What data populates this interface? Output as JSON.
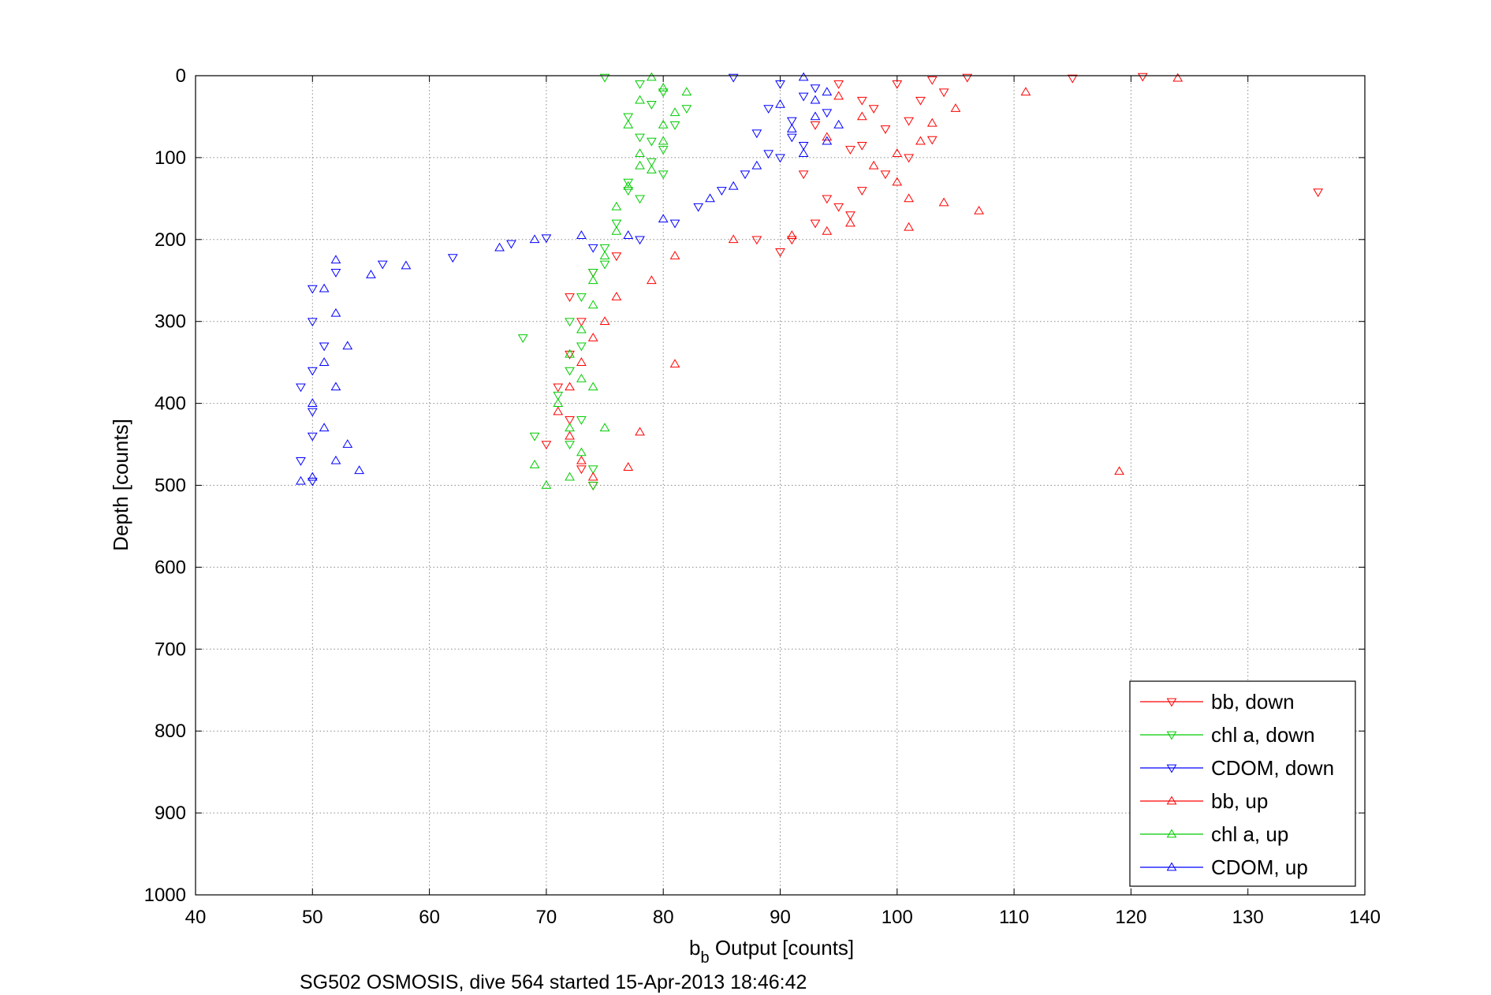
{
  "chart_data": {
    "type": "scatter",
    "xlabel_main": "b",
    "xlabel_sub": "b",
    "xlabel_rest": " Output [counts]",
    "ylabel": "Depth [counts]",
    "caption": "SG502 OSMOSIS, dive 564 started 15-Apr-2013 18:46:42",
    "xlim": [
      40,
      140
    ],
    "ylim": [
      0,
      1000
    ],
    "y_reversed": true,
    "grid": true,
    "legend_position": "bottom-right",
    "x_ticks": [
      "40",
      "50",
      "60",
      "70",
      "80",
      "90",
      "100",
      "110",
      "120",
      "130",
      "140"
    ],
    "y_ticks": [
      "0",
      "100",
      "200",
      "300",
      "400",
      "500",
      "600",
      "700",
      "800",
      "900",
      "1000"
    ],
    "series": [
      {
        "name": "bb, down",
        "color": "#ff0000",
        "marker": "triangle-down",
        "points": [
          [
            121,
            1
          ],
          [
            115,
            3
          ],
          [
            106,
            2
          ],
          [
            103,
            5
          ],
          [
            100,
            10
          ],
          [
            104,
            20
          ],
          [
            102,
            30
          ],
          [
            98,
            40
          ],
          [
            101,
            55
          ],
          [
            99,
            65
          ],
          [
            103,
            78
          ],
          [
            97,
            85
          ],
          [
            101,
            100
          ],
          [
            99,
            120
          ],
          [
            97,
            140
          ],
          [
            95,
            160
          ],
          [
            93,
            180
          ],
          [
            91,
            200
          ],
          [
            90,
            215
          ],
          [
            88,
            200
          ],
          [
            136,
            142
          ],
          [
            76,
            220
          ],
          [
            74,
            240
          ],
          [
            72,
            270
          ],
          [
            73,
            300
          ],
          [
            72,
            340
          ],
          [
            71,
            380
          ],
          [
            72,
            420
          ],
          [
            70,
            450
          ],
          [
            73,
            480
          ],
          [
            74,
            500
          ],
          [
            95,
            10
          ],
          [
            97,
            30
          ],
          [
            93,
            60
          ],
          [
            96,
            90
          ],
          [
            92,
            120
          ],
          [
            94,
            150
          ],
          [
            96,
            170
          ]
        ]
      },
      {
        "name": "chl a, down",
        "color": "#00cc00",
        "marker": "triangle-down",
        "points": [
          [
            75,
            2
          ],
          [
            78,
            10
          ],
          [
            80,
            20
          ],
          [
            79,
            35
          ],
          [
            77,
            50
          ],
          [
            81,
            60
          ],
          [
            78,
            75
          ],
          [
            80,
            90
          ],
          [
            79,
            105
          ],
          [
            77,
            130
          ],
          [
            78,
            150
          ],
          [
            76,
            180
          ],
          [
            75,
            210
          ],
          [
            74,
            240
          ],
          [
            73,
            270
          ],
          [
            72,
            300
          ],
          [
            73,
            330
          ],
          [
            72,
            360
          ],
          [
            71,
            390
          ],
          [
            73,
            420
          ],
          [
            72,
            450
          ],
          [
            74,
            480
          ],
          [
            74,
            500
          ],
          [
            68,
            320
          ],
          [
            69,
            440
          ],
          [
            82,
            40
          ],
          [
            79,
            80
          ],
          [
            80,
            120
          ],
          [
            77,
            140
          ],
          [
            75,
            230
          ]
        ]
      },
      {
        "name": "CDOM, down",
        "color": "#0000ff",
        "marker": "triangle-down",
        "points": [
          [
            86,
            2
          ],
          [
            90,
            10
          ],
          [
            92,
            25
          ],
          [
            89,
            40
          ],
          [
            91,
            55
          ],
          [
            88,
            70
          ],
          [
            92,
            85
          ],
          [
            90,
            100
          ],
          [
            87,
            120
          ],
          [
            85,
            140
          ],
          [
            83,
            160
          ],
          [
            81,
            180
          ],
          [
            78,
            200
          ],
          [
            74,
            210
          ],
          [
            70,
            198
          ],
          [
            67,
            205
          ],
          [
            62,
            222
          ],
          [
            56,
            230
          ],
          [
            52,
            240
          ],
          [
            50,
            260
          ],
          [
            50,
            300
          ],
          [
            51,
            330
          ],
          [
            50,
            360
          ],
          [
            49,
            380
          ],
          [
            50,
            410
          ],
          [
            50,
            440
          ],
          [
            49,
            470
          ],
          [
            50,
            495
          ],
          [
            93,
            15
          ],
          [
            94,
            45
          ],
          [
            91,
            75
          ],
          [
            89,
            95
          ]
        ]
      },
      {
        "name": "bb, up",
        "color": "#ff0000",
        "marker": "triangle-up",
        "points": [
          [
            124,
            3
          ],
          [
            111,
            20
          ],
          [
            105,
            40
          ],
          [
            103,
            58
          ],
          [
            102,
            80
          ],
          [
            100,
            95
          ],
          [
            98,
            110
          ],
          [
            100,
            130
          ],
          [
            101,
            150
          ],
          [
            104,
            155
          ],
          [
            107,
            165
          ],
          [
            101,
            185
          ],
          [
            96,
            180
          ],
          [
            94,
            190
          ],
          [
            91,
            195
          ],
          [
            86,
            200
          ],
          [
            81,
            220
          ],
          [
            79,
            250
          ],
          [
            76,
            270
          ],
          [
            75,
            300
          ],
          [
            74,
            320
          ],
          [
            73,
            350
          ],
          [
            72,
            380
          ],
          [
            71,
            410
          ],
          [
            72,
            440
          ],
          [
            73,
            470
          ],
          [
            74,
            490
          ],
          [
            81,
            352
          ],
          [
            78,
            435
          ],
          [
            77,
            478
          ],
          [
            119,
            483
          ],
          [
            95,
            25
          ],
          [
            97,
            50
          ],
          [
            94,
            75
          ]
        ]
      },
      {
        "name": "chl a, up",
        "color": "#00cc00",
        "marker": "triangle-up",
        "points": [
          [
            79,
            2
          ],
          [
            80,
            15
          ],
          [
            78,
            30
          ],
          [
            81,
            45
          ],
          [
            77,
            60
          ],
          [
            80,
            80
          ],
          [
            78,
            95
          ],
          [
            79,
            115
          ],
          [
            77,
            135
          ],
          [
            76,
            160
          ],
          [
            76,
            190
          ],
          [
            75,
            220
          ],
          [
            74,
            250
          ],
          [
            74,
            280
          ],
          [
            73,
            310
          ],
          [
            72,
            340
          ],
          [
            73,
            370
          ],
          [
            71,
            400
          ],
          [
            72,
            430
          ],
          [
            73,
            460
          ],
          [
            72,
            490
          ],
          [
            70,
            500
          ],
          [
            69,
            475
          ],
          [
            75,
            430
          ],
          [
            74,
            380
          ],
          [
            82,
            20
          ],
          [
            80,
            60
          ],
          [
            78,
            110
          ]
        ]
      },
      {
        "name": "CDOM, up",
        "color": "#0000ff",
        "marker": "triangle-up",
        "points": [
          [
            92,
            2
          ],
          [
            94,
            20
          ],
          [
            90,
            35
          ],
          [
            93,
            50
          ],
          [
            91,
            65
          ],
          [
            94,
            80
          ],
          [
            92,
            95
          ],
          [
            88,
            110
          ],
          [
            86,
            135
          ],
          [
            84,
            150
          ],
          [
            80,
            175
          ],
          [
            77,
            195
          ],
          [
            73,
            195
          ],
          [
            69,
            200
          ],
          [
            66,
            210
          ],
          [
            58,
            232
          ],
          [
            55,
            243
          ],
          [
            52,
            225
          ],
          [
            51,
            260
          ],
          [
            52,
            290
          ],
          [
            53,
            330
          ],
          [
            51,
            350
          ],
          [
            52,
            380
          ],
          [
            50,
            400
          ],
          [
            51,
            430
          ],
          [
            53,
            450
          ],
          [
            52,
            470
          ],
          [
            50,
            490
          ],
          [
            49,
            495
          ],
          [
            54,
            482
          ],
          [
            93,
            30
          ],
          [
            95,
            60
          ]
        ]
      }
    ]
  }
}
